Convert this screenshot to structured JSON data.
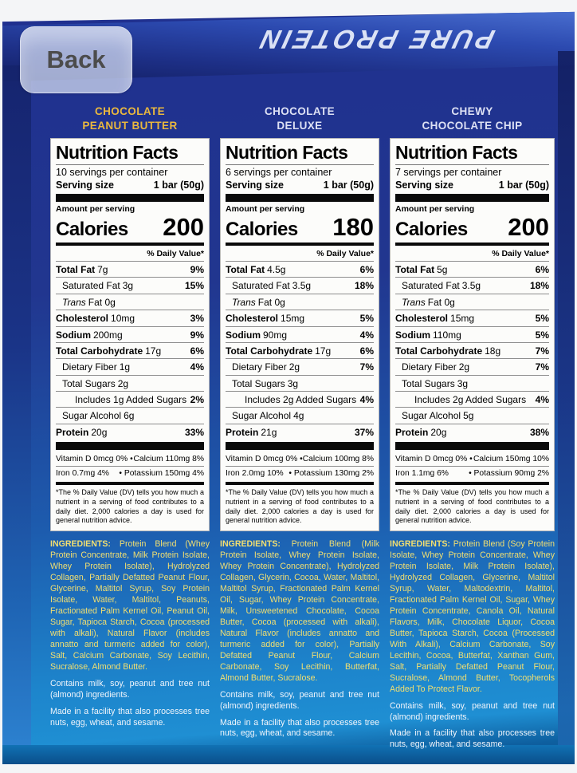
{
  "overlay": {
    "back_label": "Back"
  },
  "box": {
    "logo": "PURE PROTEIN"
  },
  "colors": {
    "box_blue_top": "#20308f",
    "box_cyan_bottom": "#1f8fd3",
    "flavor_gold": "#eab83e",
    "flavor_pale": "#dde1f4",
    "ingredients_yellow": "#f2df70",
    "label_bg": "#fcfcfa"
  },
  "panels": [
    {
      "flavor_line1": "CHOCOLATE",
      "flavor_line2": "PEANUT BUTTER",
      "title": "Nutrition Facts",
      "servings": "10 servings per container",
      "serving_size_label": "Serving size",
      "serving_size_value": "1 bar (50g)",
      "amount_per_serving": "Amount per serving",
      "calories_label": "Calories",
      "calories": "200",
      "dv_header": "% Daily Value*",
      "rows": [
        {
          "style": "main",
          "name": "Total Fat",
          "amount": "7g",
          "dv": "9%"
        },
        {
          "style": "sub",
          "name": "Saturated Fat",
          "amount": "3g",
          "dv": "15%"
        },
        {
          "style": "trans",
          "name": "Trans",
          "amount": "Fat 0g",
          "dv": ""
        },
        {
          "style": "main",
          "name": "Cholesterol",
          "amount": "10mg",
          "dv": "3%"
        },
        {
          "style": "main",
          "name": "Sodium",
          "amount": "200mg",
          "dv": "9%"
        },
        {
          "style": "main",
          "name": "Total Carbohydrate",
          "amount": "17g",
          "dv": "6%"
        },
        {
          "style": "sub",
          "name": "Dietary Fiber",
          "amount": "1g",
          "dv": "4%"
        },
        {
          "style": "sub",
          "name": "Total Sugars",
          "amount": "2g",
          "dv": ""
        },
        {
          "style": "sub2",
          "name": "Includes 1g Added Sugars",
          "amount": "",
          "dv": "2%"
        },
        {
          "style": "sub",
          "name": "Sugar Alcohol",
          "amount": "6g",
          "dv": ""
        },
        {
          "style": "main",
          "name": "Protein",
          "amount": "20g",
          "dv": "33%"
        }
      ],
      "vitamins": [
        {
          "left": "Vitamin D 0mcg 0% •",
          "right": "Calcium 110mg 8%"
        },
        {
          "left": "Iron 0.7mg 4%",
          "right": "• Potassium 150mg 4%"
        }
      ],
      "footnote": "*The % Daily Value (DV) tells you how much a nutrient in a serving of food contributes to a daily diet. 2,000 calories a day is used for general nutrition advice.",
      "ingredients_label": "INGREDIENTS:",
      "ingredients": "Protein Blend (Whey Protein Concentrate, Milk Protein Isolate, Whey Protein Isolate), Hydrolyzed Collagen, Partially Defatted Peanut Flour, Glycerine, Maltitol Syrup, Soy Protein Isolate, Water, Maltitol, Peanuts, Fractionated Palm Kernel Oil, Peanut Oil, Sugar, Tapioca Starch, Cocoa (processed with alkali), Natural Flavor (includes annatto and turmeric added for color), Salt, Calcium Carbonate, Soy Lecithin, Sucralose, Almond Butter.",
      "contains": "Contains milk, soy, peanut and tree nut (almond) ingredients.",
      "facility": "Made in a facility that also processes tree nuts, egg, wheat, and sesame."
    },
    {
      "flavor_line1": "CHOCOLATE",
      "flavor_line2": "DELUXE",
      "title": "Nutrition Facts",
      "servings": "6 servings per container",
      "serving_size_label": "Serving size",
      "serving_size_value": "1 bar (50g)",
      "amount_per_serving": "Amount per serving",
      "calories_label": "Calories",
      "calories": "180",
      "dv_header": "% Daily Value*",
      "rows": [
        {
          "style": "main",
          "name": "Total Fat",
          "amount": "4.5g",
          "dv": "6%"
        },
        {
          "style": "sub",
          "name": "Saturated Fat",
          "amount": "3.5g",
          "dv": "18%"
        },
        {
          "style": "trans",
          "name": "Trans",
          "amount": "Fat 0g",
          "dv": ""
        },
        {
          "style": "main",
          "name": "Cholesterol",
          "amount": "15mg",
          "dv": "5%"
        },
        {
          "style": "main",
          "name": "Sodium",
          "amount": "90mg",
          "dv": "4%"
        },
        {
          "style": "main",
          "name": "Total Carbohydrate",
          "amount": "17g",
          "dv": "6%"
        },
        {
          "style": "sub",
          "name": "Dietary Fiber",
          "amount": "2g",
          "dv": "7%"
        },
        {
          "style": "sub",
          "name": "Total Sugars",
          "amount": "3g",
          "dv": ""
        },
        {
          "style": "sub2",
          "name": "Includes 2g Added Sugars",
          "amount": "",
          "dv": "4%"
        },
        {
          "style": "sub",
          "name": "Sugar Alcohol",
          "amount": "4g",
          "dv": ""
        },
        {
          "style": "main",
          "name": "Protein",
          "amount": "21g",
          "dv": "37%"
        }
      ],
      "vitamins": [
        {
          "left": "Vitamin D 0mcg 0% •",
          "right": "Calcium 100mg 8%"
        },
        {
          "left": "Iron 2.0mg 10%",
          "right": "• Potassium 130mg 2%"
        }
      ],
      "footnote": "*The % Daily Value (DV) tells you how much a nutrient in a serving of food contributes to a daily diet. 2,000 calories a day is used for general nutrition advice.",
      "ingredients_label": "INGREDIENTS:",
      "ingredients": "Protein Blend (Milk Protein Isolate, Whey Protein Isolate, Whey Protein Concentrate), Hydrolyzed Collagen, Glycerin, Cocoa, Water, Maltitol, Maltitol Syrup, Fractionated Palm Kernel Oil, Sugar, Whey Protein Concentrate, Milk, Unsweetened Chocolate, Cocoa Butter, Cocoa (processed with alkali), Natural Flavor (includes annatto and turmeric added for color), Partially Defatted Peanut Flour, Calcium Carbonate, Soy Lecithin, Butterfat, Almond Butter, Sucralose.",
      "contains": "Contains milk, soy, peanut and tree nut (almond) ingredients.",
      "facility": "Made in a facility that also processes tree nuts, egg, wheat, and sesame."
    },
    {
      "flavor_line1": "CHEWY",
      "flavor_line2": "CHOCOLATE CHIP",
      "title": "Nutrition Facts",
      "servings": "7 servings per container",
      "serving_size_label": "Serving size",
      "serving_size_value": "1 bar (50g)",
      "amount_per_serving": "Amount per serving",
      "calories_label": "Calories",
      "calories": "200",
      "dv_header": "% Daily Value*",
      "rows": [
        {
          "style": "main",
          "name": "Total Fat",
          "amount": "5g",
          "dv": "6%"
        },
        {
          "style": "sub",
          "name": "Saturated Fat",
          "amount": "3.5g",
          "dv": "18%"
        },
        {
          "style": "trans",
          "name": "Trans",
          "amount": "Fat 0g",
          "dv": ""
        },
        {
          "style": "main",
          "name": "Cholesterol",
          "amount": "15mg",
          "dv": "5%"
        },
        {
          "style": "main",
          "name": "Sodium",
          "amount": "110mg",
          "dv": "5%"
        },
        {
          "style": "main",
          "name": "Total Carbohydrate",
          "amount": "18g",
          "dv": "7%"
        },
        {
          "style": "sub",
          "name": "Dietary Fiber",
          "amount": "2g",
          "dv": "7%"
        },
        {
          "style": "sub",
          "name": "Total Sugars",
          "amount": "3g",
          "dv": ""
        },
        {
          "style": "sub2",
          "name": "Includes 2g Added Sugars",
          "amount": "",
          "dv": "4%"
        },
        {
          "style": "sub",
          "name": "Sugar Alcohol",
          "amount": "5g",
          "dv": ""
        },
        {
          "style": "main",
          "name": "Protein",
          "amount": "20g",
          "dv": "38%"
        }
      ],
      "vitamins": [
        {
          "left": "Vitamin D 0mcg 0% •",
          "right": "Calcium 150mg 10%"
        },
        {
          "left": "Iron 1.1mg 6%",
          "right": "• Potassium 90mg 2%"
        }
      ],
      "footnote": "*The % Daily Value (DV) tells you how much a nutrient in a serving of food contributes to a daily diet. 2,000 calories a day is used for general nutrition advice.",
      "ingredients_label": "INGREDIENTS:",
      "ingredients": "Protein Blend (Soy Protein Isolate, Whey Protein Concentrate, Whey Protein Isolate, Milk Protein Isolate), Hydrolyzed Collagen, Glycerine, Maltitol Syrup, Water, Maltodextrin, Maltitol, Fractionated Palm Kernel Oil, Sugar, Whey Protein Concentrate, Canola Oil, Natural Flavors, Milk, Chocolate Liquor, Cocoa Butter, Tapioca Starch, Cocoa (Processed With Alkali), Calcium Carbonate, Soy Lecithin, Cocoa, Butterfat, Xanthan Gum, Salt, Partially Defatted Peanut Flour, Sucralose, Almond Butter, Tocopherols Added To Protect Flavor.",
      "contains": "Contains milk, soy, peanut and tree nut (almond) ingredients.",
      "facility": "Made in a facility that also processes tree nuts, egg, wheat, and sesame."
    }
  ]
}
